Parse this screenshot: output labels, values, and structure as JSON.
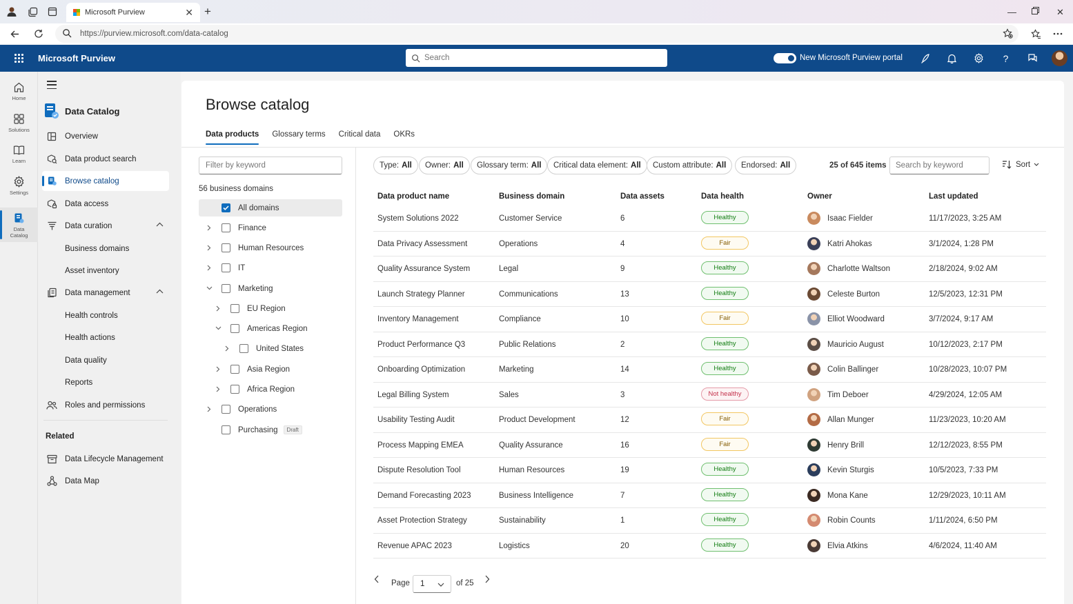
{
  "browser": {
    "tab_title": "Microsoft Purview",
    "url": "https://purview.microsoft.com/data-catalog"
  },
  "app": {
    "name": "Microsoft Purview",
    "search_placeholder": "Search",
    "toggle_label": "New Microsoft Purview portal",
    "toggle_on": true
  },
  "rail": {
    "items": [
      {
        "label": "Home",
        "icon": "home-icon"
      },
      {
        "label": "Solutions",
        "icon": "solutions-icon"
      },
      {
        "label": "Learn",
        "icon": "book-icon"
      },
      {
        "label": "Settings",
        "icon": "gear-icon"
      },
      {
        "label": "Data Catalog",
        "icon": "data-catalog-icon",
        "active": true
      }
    ]
  },
  "nav": {
    "title": "Data Catalog",
    "items": [
      {
        "label": "Overview"
      },
      {
        "label": "Data product search"
      },
      {
        "label": "Browse catalog",
        "active": true
      },
      {
        "label": "Data access"
      },
      {
        "label": "Data curation"
      },
      {
        "label": "Business domains"
      },
      {
        "label": "Asset inventory"
      },
      {
        "label": "Data management"
      },
      {
        "label": "Health controls"
      },
      {
        "label": "Health actions"
      },
      {
        "label": "Data quality"
      },
      {
        "label": "Reports"
      },
      {
        "label": "Roles and permissions"
      }
    ],
    "related_label": "Related",
    "related": [
      {
        "label": "Data Lifecycle Management"
      },
      {
        "label": "Data Map"
      }
    ]
  },
  "page": {
    "title": "Browse catalog",
    "tabs": [
      "Data products",
      "Glossary terms",
      "Critical data",
      "OKRs"
    ],
    "filter_placeholder": "Filter by keyword",
    "domain_count": "56 business domains",
    "domains": [
      {
        "label": "All domains",
        "checked": true
      },
      {
        "label": "Finance"
      },
      {
        "label": "Human Resources"
      },
      {
        "label": "IT"
      },
      {
        "label": "Marketing"
      },
      {
        "label": "EU Region"
      },
      {
        "label": "Americas Region"
      },
      {
        "label": "United States"
      },
      {
        "label": "Asia Region"
      },
      {
        "label": "Africa Region"
      },
      {
        "label": "Operations"
      },
      {
        "label": "Purchasing",
        "badge": "Draft"
      }
    ],
    "filters": [
      {
        "label": "Type:",
        "value": "All"
      },
      {
        "label": "Owner:",
        "value": "All"
      },
      {
        "label": "Glossary term:",
        "value": "All"
      },
      {
        "label": "Critical data element:",
        "value": "All"
      },
      {
        "label": "Custom attribute:",
        "value": "All"
      },
      {
        "label": "Endorsed:",
        "value": "All"
      }
    ],
    "item_count": "25 of 645 items",
    "search_placeholder": "Search by keyword",
    "sort_label": "Sort"
  },
  "table": {
    "columns": [
      "Data product name",
      "Business domain",
      "Data assets",
      "Data health",
      "Owner",
      "Last updated"
    ],
    "rows": [
      {
        "name": "System Solutions 2022",
        "domain": "Customer Service",
        "assets": "6",
        "health": "Healthy",
        "owner": "Isaac Fielder",
        "updated": "11/17/2023, 3:25 AM",
        "avatar_color": "#c98a5e"
      },
      {
        "name": "Data Privacy Assessment",
        "domain": "Operations",
        "assets": "4",
        "health": "Fair",
        "owner": "Katri Ahokas",
        "updated": "3/1/2024, 1:28 PM",
        "avatar_color": "#3a3f58"
      },
      {
        "name": "Quality Assurance System",
        "domain": "Legal",
        "assets": "9",
        "health": "Healthy",
        "owner": "Charlotte Waltson",
        "updated": "2/18/2024, 9:02 AM",
        "avatar_color": "#a5785c"
      },
      {
        "name": "Launch Strategy Planner",
        "domain": "Communications",
        "assets": "13",
        "health": "Healthy",
        "owner": "Celeste Burton",
        "updated": "12/5/2023, 12:31 PM",
        "avatar_color": "#6b4a34"
      },
      {
        "name": "Inventory Management",
        "domain": "Compliance",
        "assets": "10",
        "health": "Fair",
        "owner": "Elliot Woodward",
        "updated": "3/7/2024, 9:17 AM",
        "avatar_color": "#8a93a8"
      },
      {
        "name": "Product Performance Q3",
        "domain": "Public Relations",
        "assets": "2",
        "health": "Healthy",
        "owner": "Mauricio August",
        "updated": "10/12/2023, 2:17 PM",
        "avatar_color": "#5b4d45"
      },
      {
        "name": "Onboarding Optimization",
        "domain": "Marketing",
        "assets": "14",
        "health": "Healthy",
        "owner": "Colin Ballinger",
        "updated": "10/28/2023, 10:07 PM",
        "avatar_color": "#7a5b49"
      },
      {
        "name": "Legal Billing System",
        "domain": "Sales",
        "assets": "3",
        "health": "Not healthy",
        "owner": "Tim Deboer",
        "updated": "4/29/2024, 12:05 AM",
        "avatar_color": "#d0a27f"
      },
      {
        "name": "Usability Testing Audit",
        "domain": "Product Development",
        "assets": "12",
        "health": "Fair",
        "owner": "Allan Munger",
        "updated": "11/23/2023, 10:20 AM",
        "avatar_color": "#b36b45"
      },
      {
        "name": "Process Mapping EMEA",
        "domain": "Quality Assurance",
        "assets": "16",
        "health": "Fair",
        "owner": "Henry Brill",
        "updated": "12/12/2023, 8:55 PM",
        "avatar_color": "#2f3b33"
      },
      {
        "name": "Dispute Resolution Tool",
        "domain": "Human Resources",
        "assets": "19",
        "health": "Healthy",
        "owner": "Kevin Sturgis",
        "updated": "10/5/2023, 7:33 PM",
        "avatar_color": "#2b3d5c"
      },
      {
        "name": "Demand Forecasting 2023",
        "domain": "Business Intelligence",
        "assets": "7",
        "health": "Healthy",
        "owner": "Mona Kane",
        "updated": "12/29/2023, 10:11 AM",
        "avatar_color": "#3b2a22"
      },
      {
        "name": "Asset Protection Strategy",
        "domain": "Sustainability",
        "assets": "1",
        "health": "Healthy",
        "owner": "Robin Counts",
        "updated": "1/11/2024, 6:50 PM",
        "avatar_color": "#d48a70"
      },
      {
        "name": "Revenue APAC 2023",
        "domain": "Logistics",
        "assets": "20",
        "health": "Healthy",
        "owner": "Elvia Atkins",
        "updated": "4/6/2024, 11:40 AM",
        "avatar_color": "#4a3a35"
      }
    ]
  },
  "pagination": {
    "page_label": "Page",
    "current": "1",
    "total_label": "of 25"
  }
}
